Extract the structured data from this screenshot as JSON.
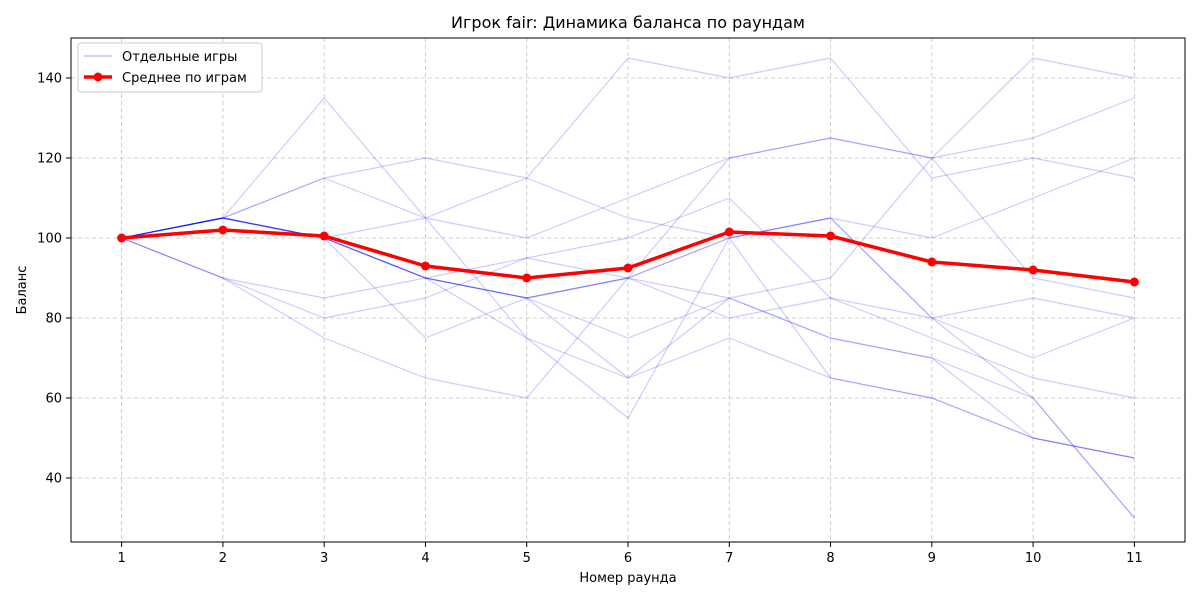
{
  "chart_data": {
    "type": "line",
    "title": "Игрок fair: Динамика баланса по раундам",
    "xlabel": "Номер раунда",
    "ylabel": "Баланс",
    "x": [
      1,
      2,
      3,
      4,
      5,
      6,
      7,
      8,
      9,
      10,
      11
    ],
    "xlim": [
      0.5,
      11.5
    ],
    "ylim": [
      24,
      150
    ],
    "x_ticks": [
      1,
      2,
      3,
      4,
      5,
      6,
      7,
      8,
      9,
      10,
      11
    ],
    "y_ticks": [
      40,
      60,
      80,
      100,
      120,
      140
    ],
    "grid": true,
    "legend_position": "top-left",
    "legend": [
      {
        "label": "Отдельные игры",
        "style": "thin-line",
        "color": "#0000ff"
      },
      {
        "label": "Среднее по играм",
        "style": "thick-line-marker",
        "color": "#ff0000"
      }
    ],
    "individual_color": "#0000ff",
    "individual_games": [
      {
        "values": [
          100,
          105,
          135,
          105,
          75,
          65,
          85,
          75,
          70,
          60,
          30
        ]
      },
      {
        "values": [
          100,
          105,
          115,
          120,
          115,
          105,
          100,
          105,
          100,
          110,
          120
        ]
      },
      {
        "values": [
          100,
          105,
          100,
          105,
          115,
          145,
          140,
          145,
          115,
          120,
          115
        ]
      },
      {
        "values": [
          100,
          105,
          115,
          105,
          100,
          110,
          120,
          125,
          120,
          90,
          85
        ]
      },
      {
        "values": [
          100,
          90,
          85,
          90,
          95,
          100,
          110,
          85,
          75,
          65,
          60
        ]
      },
      {
        "values": [
          100,
          90,
          80,
          85,
          95,
          90,
          85,
          75,
          70,
          50,
          45
        ]
      },
      {
        "values": [
          100,
          105,
          100,
          75,
          85,
          75,
          85,
          90,
          120,
          145,
          140
        ]
      },
      {
        "values": [
          100,
          105,
          100,
          90,
          85,
          90,
          100,
          105,
          80,
          85,
          80
        ]
      },
      {
        "values": [
          100,
          90,
          75,
          65,
          60,
          90,
          80,
          85,
          80,
          70,
          80
        ]
      },
      {
        "values": [
          100,
          105,
          100,
          90,
          75,
          55,
          100,
          65,
          60,
          50,
          45
        ]
      },
      {
        "values": [
          100,
          105,
          100,
          90,
          85,
          65,
          75,
          65,
          60,
          50,
          45
        ]
      },
      {
        "values": [
          100,
          105,
          100,
          90,
          85,
          90,
          120,
          125,
          120,
          125,
          135
        ]
      },
      {
        "values": [
          100,
          105,
          100,
          90,
          85,
          90,
          100,
          105,
          80,
          60,
          30
        ]
      }
    ],
    "series": [
      {
        "name": "Среднее по играм",
        "color": "#ff0000",
        "values": [
          100,
          102,
          100.5,
          93,
          90,
          92.5,
          101.5,
          100.5,
          94,
          92,
          89
        ]
      }
    ]
  }
}
